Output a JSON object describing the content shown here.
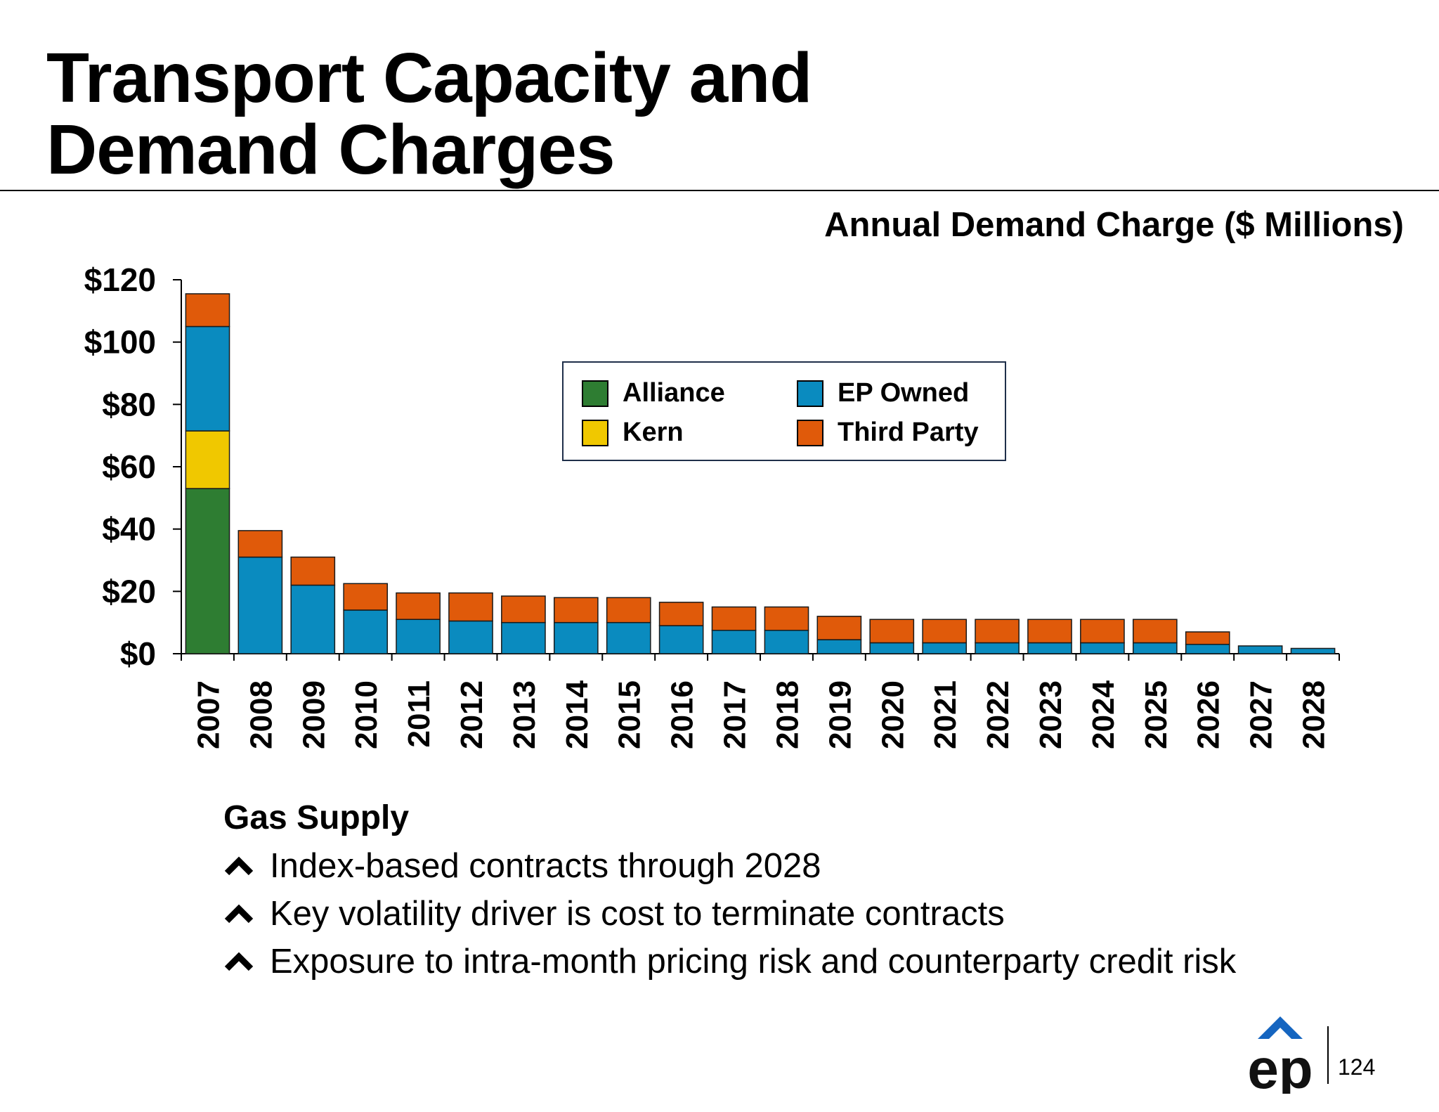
{
  "slide": {
    "title_line1": "Transport Capacity and",
    "title_line2": "Demand Charges",
    "page_number": "124"
  },
  "chart_data": {
    "type": "bar",
    "stacked": true,
    "title": "Annual Demand Charge ($ Millions)",
    "xlabel": "",
    "ylabel": "",
    "ylim": [
      0,
      120
    ],
    "yticks": [
      0,
      20,
      40,
      60,
      80,
      100,
      120
    ],
    "ytick_labels": [
      "$0",
      "$20",
      "$40",
      "$60",
      "$80",
      "$100",
      "$120"
    ],
    "legend_position": "upper-center",
    "categories": [
      "2007",
      "2008",
      "2009",
      "2010",
      "2011",
      "2012",
      "2013",
      "2014",
      "2015",
      "2016",
      "2017",
      "2018",
      "2019",
      "2020",
      "2021",
      "2022",
      "2023",
      "2024",
      "2025",
      "2026",
      "2027",
      "2028"
    ],
    "series": [
      {
        "name": "Alliance",
        "color": "#2e7d32",
        "values": [
          53,
          0,
          0,
          0,
          0,
          0,
          0,
          0,
          0,
          0,
          0,
          0,
          0,
          0,
          0,
          0,
          0,
          0,
          0,
          0,
          0,
          0
        ]
      },
      {
        "name": "Kern",
        "color": "#f0c800",
        "values": [
          18.5,
          0,
          0,
          0,
          0,
          0,
          0,
          0,
          0,
          0,
          0,
          0,
          0,
          0,
          0,
          0,
          0,
          0,
          0,
          0,
          0,
          0
        ]
      },
      {
        "name": "EP Owned",
        "color": "#0a8bbf",
        "values": [
          33.5,
          31,
          22,
          14,
          11,
          10.5,
          10,
          10,
          10,
          9,
          7.5,
          7.5,
          4.5,
          3.5,
          3.5,
          3.5,
          3.5,
          3.5,
          3.5,
          3,
          2.5,
          1.7
        ]
      },
      {
        "name": "Third Party",
        "color": "#e05a0a",
        "values": [
          10.5,
          8.5,
          9,
          8.5,
          8.5,
          9,
          8.5,
          8,
          8,
          7.5,
          7.5,
          7.5,
          7.5,
          7.5,
          7.5,
          7.5,
          7.5,
          7.5,
          7.5,
          4,
          0,
          0
        ]
      }
    ]
  },
  "gas_supply": {
    "heading": "Gas Supply",
    "bullets": [
      "Index-based contracts through 2028",
      "Key volatility driver is cost to terminate contracts",
      "Exposure to intra-month pricing risk and counterparty credit risk"
    ]
  },
  "logo": {
    "text": "ep",
    "accent_color": "#1565c0"
  }
}
